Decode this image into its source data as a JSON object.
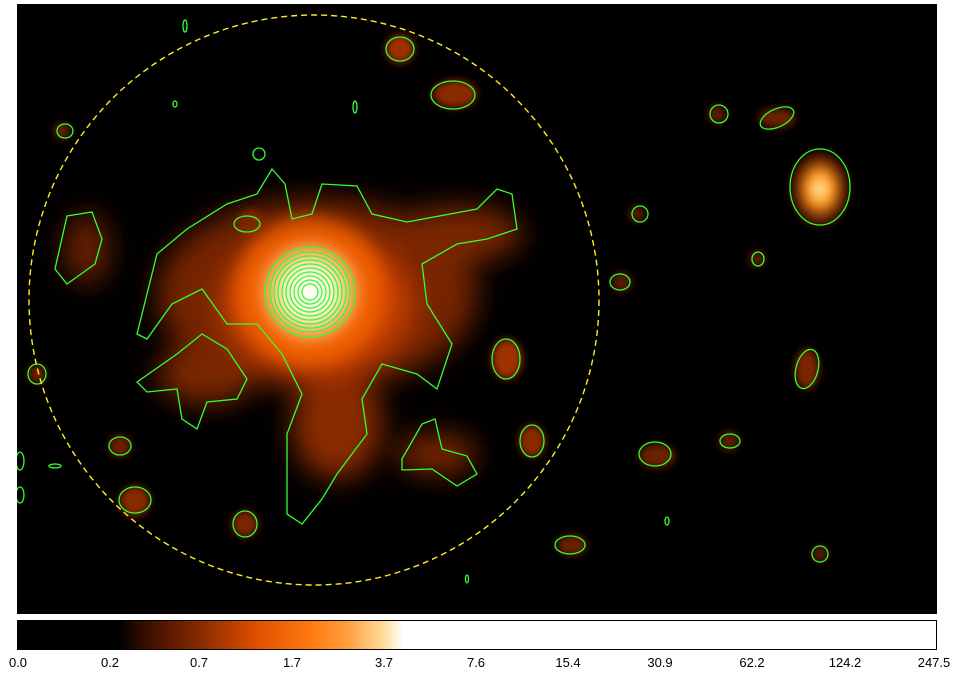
{
  "image": {
    "description_colormap": "heat",
    "colors": {
      "background": "#000000",
      "contour": "#33ff33",
      "region": "#ffee22"
    }
  },
  "colorbar": {
    "ticks": [
      "0.0",
      "0.2",
      "0.7",
      "1.7",
      "3.7",
      "7.6",
      "15.4",
      "30.9",
      "62.2",
      "124.2",
      "247.5"
    ],
    "colors": [
      "#000000",
      "#3a0f00",
      "#8a2a00",
      "#e05000",
      "#ff7a10",
      "#ffa040",
      "#ffe0a0",
      "#ffffff"
    ]
  }
}
